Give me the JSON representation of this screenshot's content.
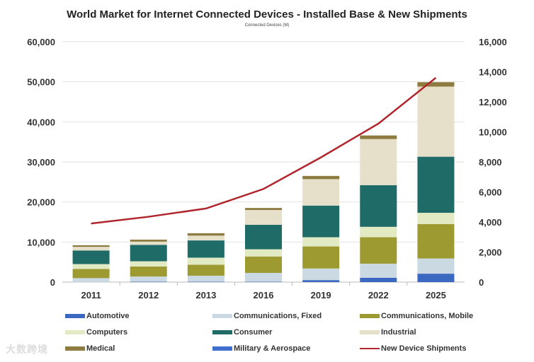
{
  "chart_data": {
    "type": "bar",
    "stacked": true,
    "title": "World Market for Internet Connected Devices - Installed Base & New Shipments",
    "subtitle": "Connected Devices (M)",
    "categories": [
      "2011",
      "2012",
      "2013",
      "2016",
      "2019",
      "2022",
      "2025"
    ],
    "ylim": [
      0,
      60000
    ],
    "y_ticks": [
      "0",
      "10,000",
      "20,000",
      "30,000",
      "40,000",
      "50,000",
      "60,000"
    ],
    "y2lim": [
      0,
      16000
    ],
    "y2_ticks": [
      "0",
      "2,000",
      "4,000",
      "6,000",
      "8,000",
      "10,000",
      "12,000",
      "14,000",
      "16,000"
    ],
    "grid": true,
    "legend_position": "bottom",
    "series": [
      {
        "name": "Automotive",
        "color": "#3b68c0",
        "values": [
          0,
          100,
          100,
          100,
          500,
          1100,
          2100
        ]
      },
      {
        "name": "Communications, Fixed",
        "color": "#cad9e2",
        "values": [
          1000,
          1300,
          1500,
          2200,
          2900,
          3500,
          3800
        ]
      },
      {
        "name": "Communications, Mobile",
        "color": "#9d9a32",
        "values": [
          2300,
          2500,
          2750,
          4100,
          5500,
          6600,
          8600
        ]
      },
      {
        "name": "Computers",
        "color": "#e2eac4",
        "values": [
          1200,
          1300,
          1750,
          1800,
          2300,
          2600,
          2800
        ]
      },
      {
        "name": "Consumer",
        "color": "#1f6b67",
        "values": [
          3400,
          4100,
          4300,
          6100,
          7900,
          10400,
          14000
        ]
      },
      {
        "name": "Industrial",
        "color": "#e6e0cb",
        "values": [
          900,
          800,
          1200,
          3700,
          6600,
          11500,
          17500
        ]
      },
      {
        "name": "Medical",
        "color": "#8e7b40",
        "values": [
          400,
          500,
          600,
          500,
          800,
          900,
          1100
        ]
      },
      {
        "name": "Military & Aerospace",
        "color": "#3f6fcc",
        "values": [
          0,
          0,
          0,
          0,
          0,
          0,
          0
        ]
      }
    ],
    "line_series": {
      "name": "New Device Shipments",
      "color": "#b0262c",
      "axis": "right",
      "values": [
        3900,
        4350,
        4900,
        6200,
        8300,
        10550,
        13600
      ]
    }
  },
  "watermark": "大数跨境"
}
